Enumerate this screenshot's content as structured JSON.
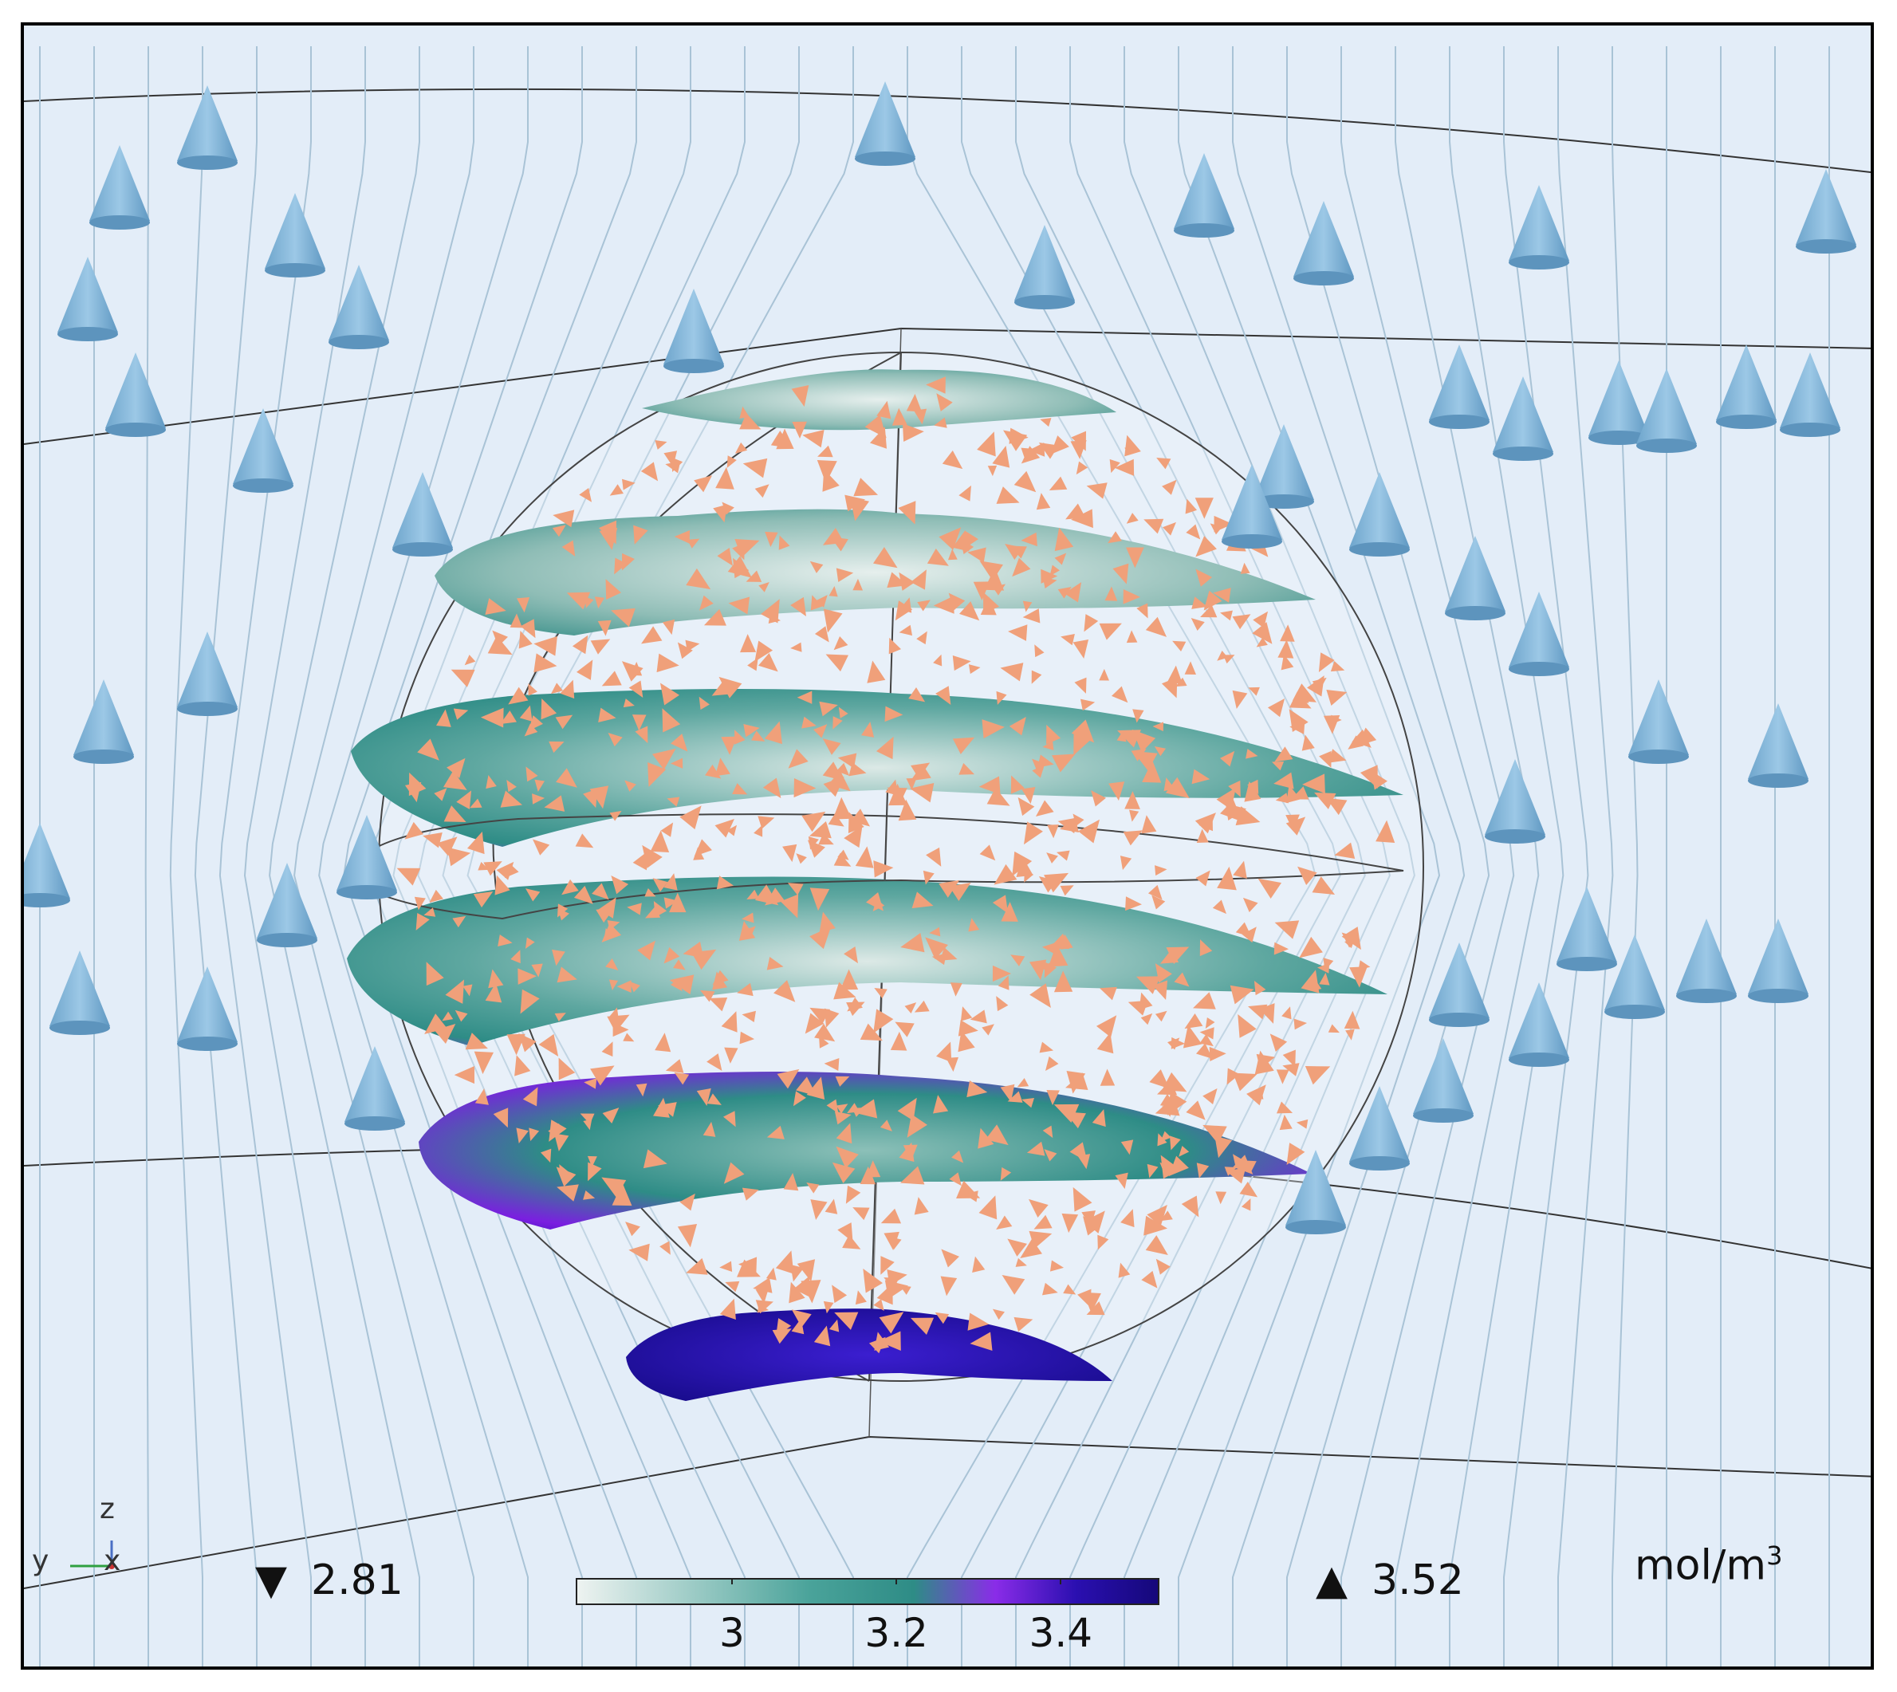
{
  "axes_indicator": {
    "z_label": "z",
    "y_label": "y",
    "x_label": "x"
  },
  "legend": {
    "min_symbol": "▼",
    "min_value": "2.81",
    "max_symbol": "▲",
    "max_value": "3.52",
    "unit_base": "mol/m",
    "unit_exp": "3"
  },
  "colorbar": {
    "range": [
      2.81,
      3.52
    ],
    "ticks": [
      {
        "value": 3,
        "label": "3"
      },
      {
        "value": 3.2,
        "label": "3.2"
      },
      {
        "value": 3.4,
        "label": "3.4"
      }
    ],
    "colors": [
      "#e8f0ee",
      "#2e8c86",
      "#7a1fe0",
      "#1a0a8c"
    ]
  },
  "colors": {
    "background": "#e3edf8",
    "flow_cone": "#7fb3d6",
    "particle_cone": "#f0a07a",
    "streamline": "#a9c3d6"
  }
}
